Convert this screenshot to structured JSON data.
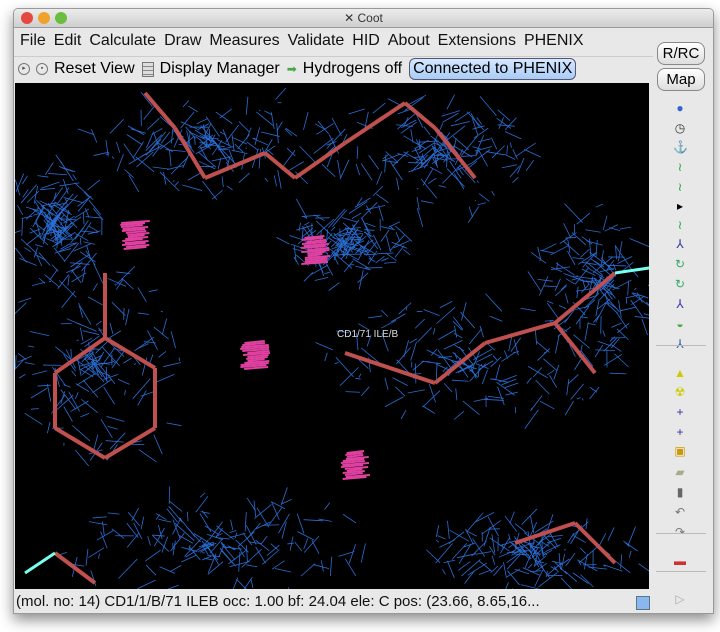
{
  "window": {
    "title": "Coot"
  },
  "menu": [
    "File",
    "Edit",
    "Calculate",
    "Draw",
    "Measures",
    "Validate",
    "HID",
    "About",
    "Extensions",
    "PHENIX"
  ],
  "toolbar": {
    "reset_view": "Reset View",
    "display_manager": "Display Manager",
    "hydrogens": "Hydrogens off",
    "phenix": "Connected to PHENIX"
  },
  "side": {
    "rrc": "R/RC",
    "map": "Map",
    "icons": [
      "rotate-view-icon",
      "clock-icon",
      "anchor-icon",
      "refine-zone-icon",
      "regularize-icon",
      "expand-arrow-icon",
      "rigid-body-icon",
      "real-space-fit-icon",
      "rotamers-icon",
      "edit-chi-icon",
      "flip-peptide-icon",
      "side-chain-icon",
      "mutate-icon",
      "pseudo-atom-icon",
      "radioactive-icon",
      "add-atom-icon",
      "add-residue-icon",
      "add-water-icon",
      "stamp-icon",
      "delete-icon",
      "undo-icon",
      "redo-icon",
      "flag-icon",
      "play-icon"
    ]
  },
  "canvas": {
    "atom_label": "CD1/71 ILE/B"
  },
  "status": "(mol. no: 14)  CD1/1/B/71 ILEB occ:  1.00 bf: 24.04 ele:  C pos: (23.66, 8.65,16..."
}
